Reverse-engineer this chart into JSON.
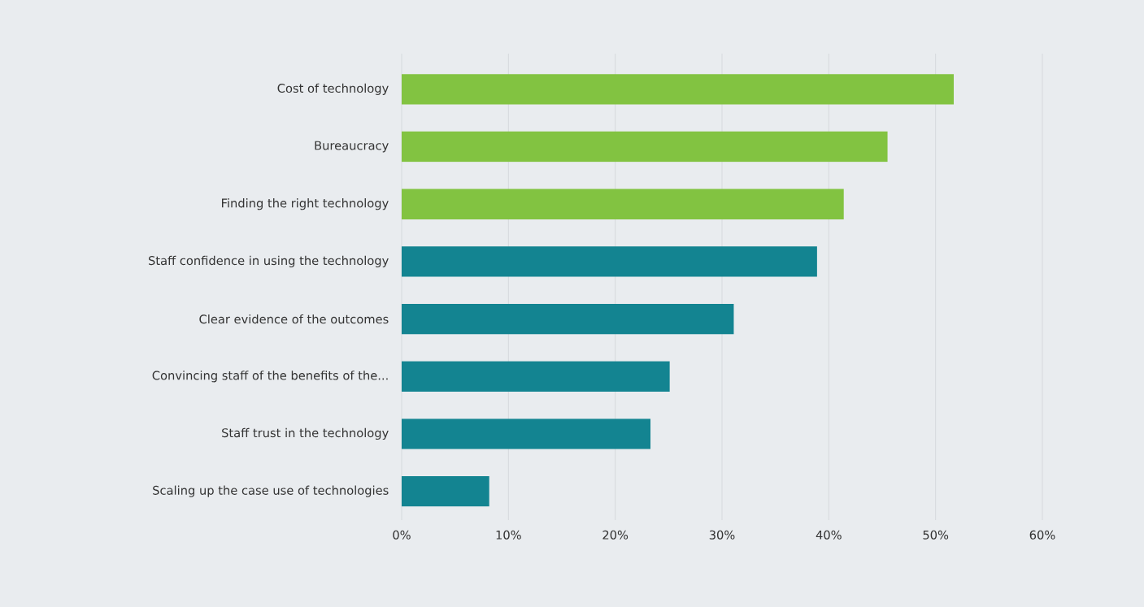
{
  "chart_data": {
    "type": "bar",
    "orientation": "horizontal",
    "categories": [
      "Cost of technology",
      "Bureaucracy",
      "Finding the right technology",
      "Staff confidence in using the technology",
      "Clear evidence of the outcomes",
      "Convincing staff of the benefits of the...",
      "Staff trust in the technology",
      "Scaling up the case use of technologies"
    ],
    "values": [
      51.7,
      45.5,
      41.4,
      38.9,
      31.1,
      25.1,
      23.3,
      8.2
    ],
    "colors": [
      "#82c341",
      "#82c341",
      "#82c341",
      "#138491",
      "#138491",
      "#138491",
      "#138491",
      "#138491"
    ],
    "xlim": [
      0,
      60
    ],
    "xticks": [
      {
        "value": 0,
        "label": "0%"
      },
      {
        "value": 10,
        "label": "10%"
      },
      {
        "value": 20,
        "label": "20%"
      },
      {
        "value": 30,
        "label": "30%"
      },
      {
        "value": 40,
        "label": "40%"
      },
      {
        "value": 50,
        "label": "50%"
      },
      {
        "value": 60,
        "label": "60%"
      }
    ],
    "grid": "x"
  }
}
